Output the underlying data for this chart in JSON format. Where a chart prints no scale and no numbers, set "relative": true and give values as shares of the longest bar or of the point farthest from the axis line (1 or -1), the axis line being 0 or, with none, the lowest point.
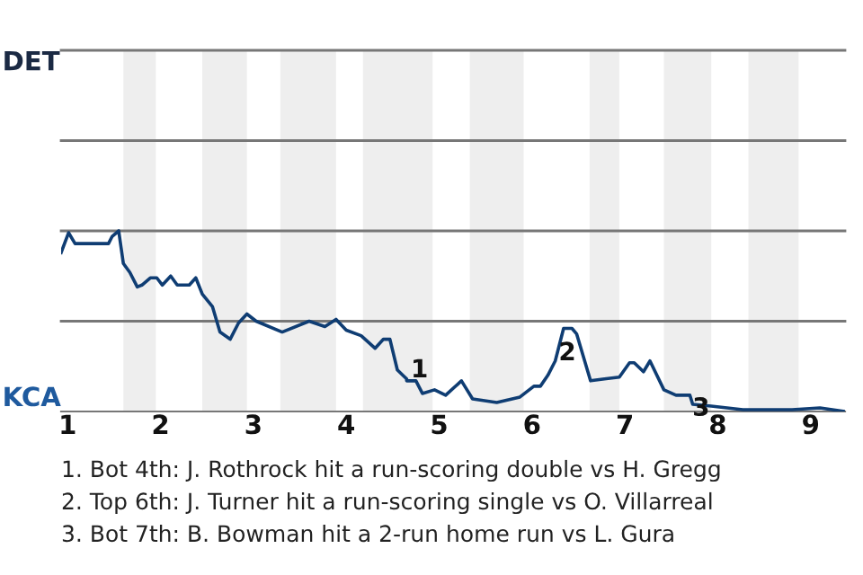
{
  "chart_data": {
    "type": "line",
    "relative": true,
    "x": [
      0.93,
      1.01,
      1.08,
      1.44,
      1.48,
      1.55,
      1.6,
      1.67,
      1.75,
      1.8,
      1.89,
      1.96,
      2.02,
      2.11,
      2.18,
      2.31,
      2.38,
      2.45,
      2.56,
      2.64,
      2.75,
      2.84,
      2.93,
      3.03,
      3.31,
      3.6,
      3.77,
      3.89,
      4.0,
      4.16,
      4.31,
      4.4,
      4.47,
      4.55,
      4.65,
      4.65,
      4.75,
      4.82,
      4.95,
      5.07,
      5.24,
      5.36,
      5.62,
      5.87,
      6.02,
      6.09,
      6.17,
      6.25,
      6.34,
      6.43,
      6.48,
      6.63,
      6.78,
      6.94,
      7.05,
      7.1,
      7.2,
      7.27,
      7.42,
      7.55,
      7.7,
      7.73,
      7.93,
      8.27,
      8.8,
      9.1,
      9.37
    ],
    "series": [
      {
        "color": "#0f3d73",
        "values": [
          0.88,
          0.99,
          0.93,
          0.93,
          0.97,
          1,
          0.82,
          0.77,
          0.69,
          0.7,
          0.74,
          0.74,
          0.7,
          0.75,
          0.7,
          0.7,
          0.74,
          0.65,
          0.58,
          0.44,
          0.4,
          0.49,
          0.54,
          0.5,
          0.44,
          0.5,
          0.47,
          0.51,
          0.45,
          0.42,
          0.35,
          0.4,
          0.4,
          0.23,
          0.18,
          0.17,
          0.17,
          0.1,
          0.12,
          0.09,
          0.17,
          0.07,
          0.05,
          0.08,
          0.14,
          0.14,
          0.2,
          0.28,
          0.46,
          0.46,
          0.43,
          0.17,
          0.18,
          0.19,
          0.27,
          0.27,
          0.22,
          0.28,
          0.12,
          0.09,
          0.09,
          0.04,
          0.03,
          0.01,
          0.01,
          0.02,
          0
        ]
      }
    ],
    "xlim": [
      0.93,
      9.37
    ],
    "xticks": [
      1,
      2,
      3,
      4,
      5,
      6,
      7,
      8,
      9
    ],
    "ref_lines": [
      {
        "axis": "y",
        "value": 0.5,
        "color": "#777777"
      },
      {
        "axis": "y",
        "value": 1,
        "color": "#777777"
      },
      {
        "axis": "y",
        "value": 1.5,
        "color": "#777777"
      },
      {
        "axis": "y",
        "value": 2,
        "color": "#777777"
      }
    ],
    "legend": false,
    "marker": "none",
    "line_style": "solid",
    "bands": [
      {
        "axis": "x",
        "from": 1.6,
        "to": 1.95,
        "color": "#eeeeee"
      },
      {
        "axis": "x",
        "from": 2.45,
        "to": 2.93,
        "color": "#eeeeee"
      },
      {
        "axis": "x",
        "from": 3.29,
        "to": 3.89,
        "color": "#eeeeee"
      },
      {
        "axis": "x",
        "from": 4.18,
        "to": 4.93,
        "color": "#eeeeee"
      },
      {
        "axis": "x",
        "from": 5.33,
        "to": 5.91,
        "color": "#eeeeee"
      },
      {
        "axis": "x",
        "from": 6.62,
        "to": 6.94,
        "color": "#eeeeee"
      },
      {
        "axis": "x",
        "from": 7.42,
        "to": 7.93,
        "color": "#eeeeee"
      },
      {
        "axis": "x",
        "from": 8.33,
        "to": 8.87,
        "color": "#eeeeee"
      }
    ],
    "annotations": [
      "DET",
      "KCA",
      {
        "text": "1",
        "x": 4.6,
        "y": 0.2
      },
      {
        "text": "2",
        "x": 6.38,
        "y": 0.46
      },
      {
        "text": "3",
        "x": 7.82,
        "y": 0.07
      },
      "1. Bot 4th: J. Rothrock hit a run-scoring double vs H. Gregg",
      "2. Top 6th: J. Turner hit a run-scoring single vs O. Villarreal",
      "3. Bot 7th: B. Bowman hit a 2-run home run vs L. Gura"
    ]
  }
}
